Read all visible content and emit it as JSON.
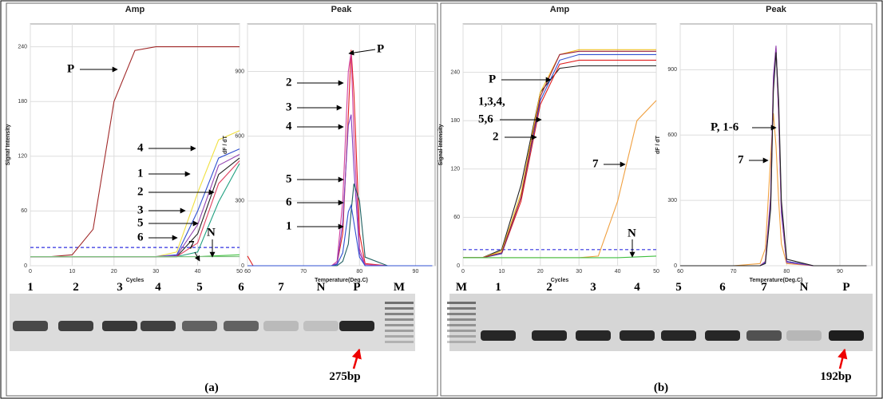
{
  "chart_data": [
    {
      "type": "line",
      "title": "Amp",
      "xlabel": "Cycles",
      "ylabel": "Signal Intensity",
      "x": [
        0,
        5,
        10,
        15,
        20,
        25,
        30,
        35,
        40,
        45,
        50
      ],
      "xlim": [
        0,
        50
      ],
      "ylim": [
        0,
        265
      ],
      "xticks": [
        0,
        10,
        20,
        30,
        40,
        50
      ],
      "yticks": [
        0,
        60,
        120,
        180,
        240
      ],
      "grid": true,
      "threshold": 20,
      "threshold_color": "#3030e0",
      "series": [
        {
          "color": "#a02828",
          "values": [
            10,
            10,
            12,
            40,
            180,
            236,
            240,
            240,
            240,
            240,
            240
          ]
        },
        {
          "color": "#f0e040",
          "values": [
            10,
            10,
            10,
            10,
            10,
            10,
            10,
            15,
            80,
            138,
            148
          ]
        },
        {
          "color": "#3050d0",
          "values": [
            10,
            10,
            10,
            10,
            10,
            10,
            10,
            12,
            60,
            118,
            128
          ]
        },
        {
          "color": "#9040b0",
          "values": [
            10,
            10,
            10,
            10,
            10,
            10,
            10,
            11,
            45,
            110,
            122
          ]
        },
        {
          "color": "#202020",
          "values": [
            10,
            10,
            10,
            10,
            10,
            10,
            10,
            10,
            35,
            100,
            118
          ]
        },
        {
          "color": "#20a080",
          "values": [
            10,
            10,
            10,
            10,
            10,
            10,
            10,
            10,
            15,
            70,
            112
          ]
        },
        {
          "color": "#e04060",
          "values": [
            10,
            10,
            10,
            10,
            10,
            10,
            10,
            10,
            25,
            90,
            115
          ]
        },
        {
          "color": "#40c040",
          "values": [
            10,
            10,
            10,
            10,
            10,
            10,
            10,
            10,
            10,
            11,
            12
          ]
        },
        {
          "color": "#80c080",
          "values": [
            10,
            10,
            10,
            10,
            10,
            10,
            10,
            10,
            10,
            10,
            10
          ]
        }
      ],
      "annotations": [
        "P",
        "4",
        "1",
        "2",
        "3",
        "5",
        "6",
        "7",
        "N"
      ]
    },
    {
      "type": "line",
      "title": "Peak",
      "xlabel": "Temperature(Deg.C)",
      "ylabel": "dF / dT",
      "x": [
        60,
        61,
        62,
        70,
        75,
        76,
        77,
        78,
        78.5,
        79,
        80,
        81,
        85,
        93
      ],
      "xlim": [
        60,
        93.5
      ],
      "ylim": [
        0,
        1120
      ],
      "xticks": [
        60,
        70,
        80,
        90
      ],
      "yticks": [
        0,
        300,
        600,
        900
      ],
      "grid": true,
      "series": [
        {
          "color": "#e02020",
          "values": [
            45,
            0,
            0,
            0,
            0,
            10,
            150,
            700,
            1000,
            800,
            150,
            10,
            0,
            0
          ]
        },
        {
          "color": "#d040a0",
          "values": [
            0,
            0,
            0,
            0,
            0,
            20,
            300,
            900,
            990,
            600,
            80,
            5,
            0,
            0
          ]
        },
        {
          "color": "#8040c0",
          "values": [
            0,
            0,
            0,
            0,
            0,
            10,
            200,
            650,
            700,
            450,
            60,
            0,
            0,
            0
          ]
        },
        {
          "color": "#206060",
          "values": [
            0,
            0,
            0,
            0,
            0,
            0,
            20,
            100,
            250,
            380,
            300,
            40,
            0,
            0
          ]
        },
        {
          "color": "#3050d0",
          "values": [
            0,
            0,
            0,
            0,
            0,
            5,
            60,
            250,
            280,
            200,
            40,
            0,
            0,
            0
          ]
        }
      ],
      "annotations": [
        "P",
        "2",
        "3",
        "4",
        "5",
        "6",
        "1"
      ]
    },
    {
      "type": "line",
      "title": "Amp",
      "xlabel": "Cycles",
      "ylabel": "Signal Intensity",
      "x": [
        0,
        5,
        10,
        15,
        20,
        25,
        30,
        35,
        40,
        45,
        50
      ],
      "xlim": [
        0,
        50
      ],
      "ylim": [
        0,
        300
      ],
      "xticks": [
        0,
        10,
        20,
        30,
        40,
        50
      ],
      "yticks": [
        0,
        60,
        120,
        180,
        240
      ],
      "grid": true,
      "threshold": 20,
      "threshold_color": "#3030e0",
      "series": [
        {
          "color": "#202020",
          "values": [
            10,
            10,
            20,
            100,
            215,
            245,
            248,
            248,
            248,
            248,
            248
          ]
        },
        {
          "color": "#e02020",
          "values": [
            10,
            10,
            15,
            80,
            200,
            250,
            255,
            255,
            255,
            255,
            255
          ]
        },
        {
          "color": "#3050d0",
          "values": [
            10,
            10,
            15,
            85,
            205,
            255,
            262,
            262,
            262,
            262,
            262
          ]
        },
        {
          "color": "#f0c020",
          "values": [
            10,
            10,
            18,
            90,
            215,
            262,
            268,
            268,
            268,
            268,
            268
          ]
        },
        {
          "color": "#9a2040",
          "values": [
            10,
            10,
            16,
            85,
            210,
            262,
            266,
            266,
            266,
            266,
            266
          ]
        },
        {
          "color": "#f0a040",
          "values": [
            10,
            10,
            10,
            10,
            10,
            10,
            10,
            12,
            80,
            180,
            205
          ]
        },
        {
          "color": "#40c040",
          "values": [
            10,
            10,
            10,
            10,
            10,
            10,
            10,
            10,
            10,
            11,
            12
          ]
        }
      ],
      "annotations": [
        "P",
        "1,3,4,",
        "5,6",
        "2",
        "7",
        "N"
      ]
    },
    {
      "type": "line",
      "title": "Peak",
      "xlabel": "Temperature(Deg.C)",
      "ylabel": "dF / dT",
      "x": [
        60,
        70,
        75,
        76,
        77,
        77.5,
        78,
        78.5,
        79,
        80,
        85,
        95
      ],
      "xlim": [
        60,
        96
      ],
      "ylim": [
        0,
        1110
      ],
      "xticks": [
        60,
        70,
        80,
        90
      ],
      "yticks": [
        0,
        300,
        600,
        900
      ],
      "grid": true,
      "series": [
        {
          "color": "#f0a040",
          "values": [
            0,
            0,
            10,
            80,
            500,
            700,
            550,
            300,
            100,
            10,
            0,
            0
          ]
        },
        {
          "color": "#e02020",
          "values": [
            0,
            0,
            0,
            20,
            300,
            850,
            1000,
            700,
            250,
            20,
            0,
            0
          ]
        },
        {
          "color": "#3050d0",
          "values": [
            0,
            0,
            0,
            15,
            280,
            830,
            990,
            720,
            260,
            20,
            0,
            0
          ]
        },
        {
          "color": "#9040b0",
          "values": [
            0,
            0,
            0,
            20,
            320,
            870,
            1010,
            690,
            240,
            15,
            0,
            0
          ]
        },
        {
          "color": "#202020",
          "values": [
            0,
            0,
            0,
            10,
            260,
            800,
            980,
            760,
            300,
            30,
            0,
            0
          ]
        }
      ],
      "annotations": [
        "P, 1-6",
        "7"
      ]
    }
  ],
  "gels": [
    {
      "lanes": [
        "1",
        "2",
        "3",
        "4",
        "5",
        "6",
        "7",
        "N",
        "P",
        "M"
      ],
      "size_label": "275bp",
      "panel_label": "(a)"
    },
    {
      "lanes": [
        "M",
        "1",
        "2",
        "3",
        "4",
        "5",
        "6",
        "7",
        "N",
        "P"
      ],
      "size_label": "192bp",
      "panel_label": "(b)"
    }
  ]
}
